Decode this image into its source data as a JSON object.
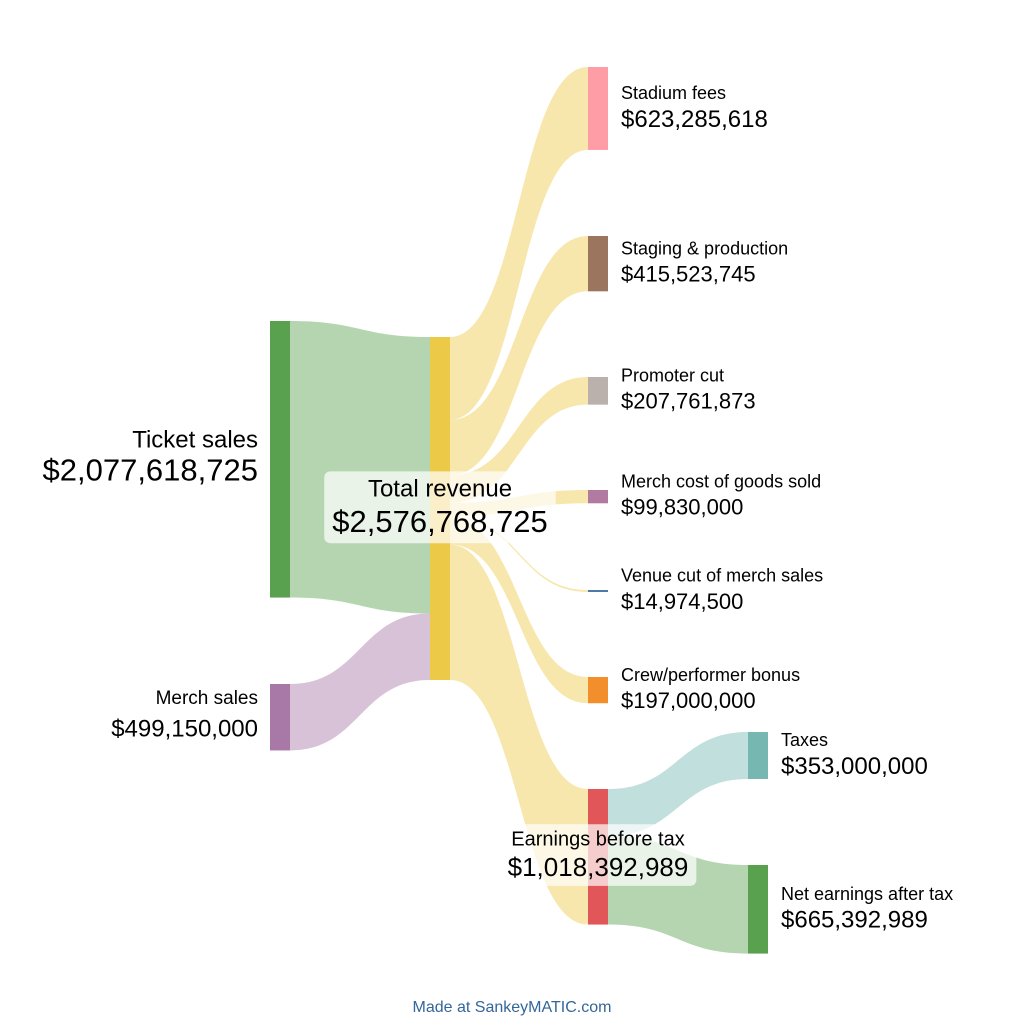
{
  "chart_data": {
    "type": "sankey",
    "nodes": {
      "names": [
        "Ticket sales",
        "Merch sales",
        "Total revenue",
        "Stadium fees",
        "Staging & production",
        "Promoter cut",
        "Merch cost of goods sold",
        "Venue cut of merch sales",
        "Crew/performer bonus",
        "Earnings before tax",
        "Taxes",
        "Net earnings after tax"
      ],
      "values": [
        2077618725,
        499150000,
        2576768725,
        623285618,
        415523745,
        207761873,
        99830000,
        14974500,
        197000000,
        1018392989,
        353000000,
        665392989
      ],
      "value_labels": [
        "$2,077,618,725",
        "$499,150,000",
        "$2,576,768,725",
        "$623,285,618",
        "$415,523,745",
        "$207,761,873",
        "$99,830,000",
        "$14,974,500",
        "$197,000,000",
        "$1,018,392,989",
        "$353,000,000",
        "$665,392,989"
      ],
      "colors": [
        "#59a14f",
        "#a878a6",
        "#edc948",
        "#ff9da7",
        "#9c755f",
        "#bab0ac",
        "#b07aa1",
        "#4e79a7",
        "#f28e2b",
        "#e15759",
        "#76b7b2",
        "#59a14f"
      ]
    },
    "links": {
      "sources": [
        0,
        1,
        2,
        2,
        2,
        2,
        2,
        2,
        2,
        9,
        9
      ],
      "targets": [
        2,
        2,
        3,
        4,
        5,
        6,
        7,
        8,
        9,
        10,
        11
      ],
      "values": [
        2077618725,
        499150000,
        623285618,
        415523745,
        207761873,
        99830000,
        14974500,
        197000000,
        1018392989,
        353000000,
        665392989
      ],
      "colors": [
        "#59a14f",
        "#a878a6",
        "#edc948",
        "#edc948",
        "#edc948",
        "#edc948",
        "#edc948",
        "#edc948",
        "#edc948",
        "#76b7b2",
        "#59a14f"
      ]
    }
  },
  "footer": "Made at SankeyMATIC.com"
}
